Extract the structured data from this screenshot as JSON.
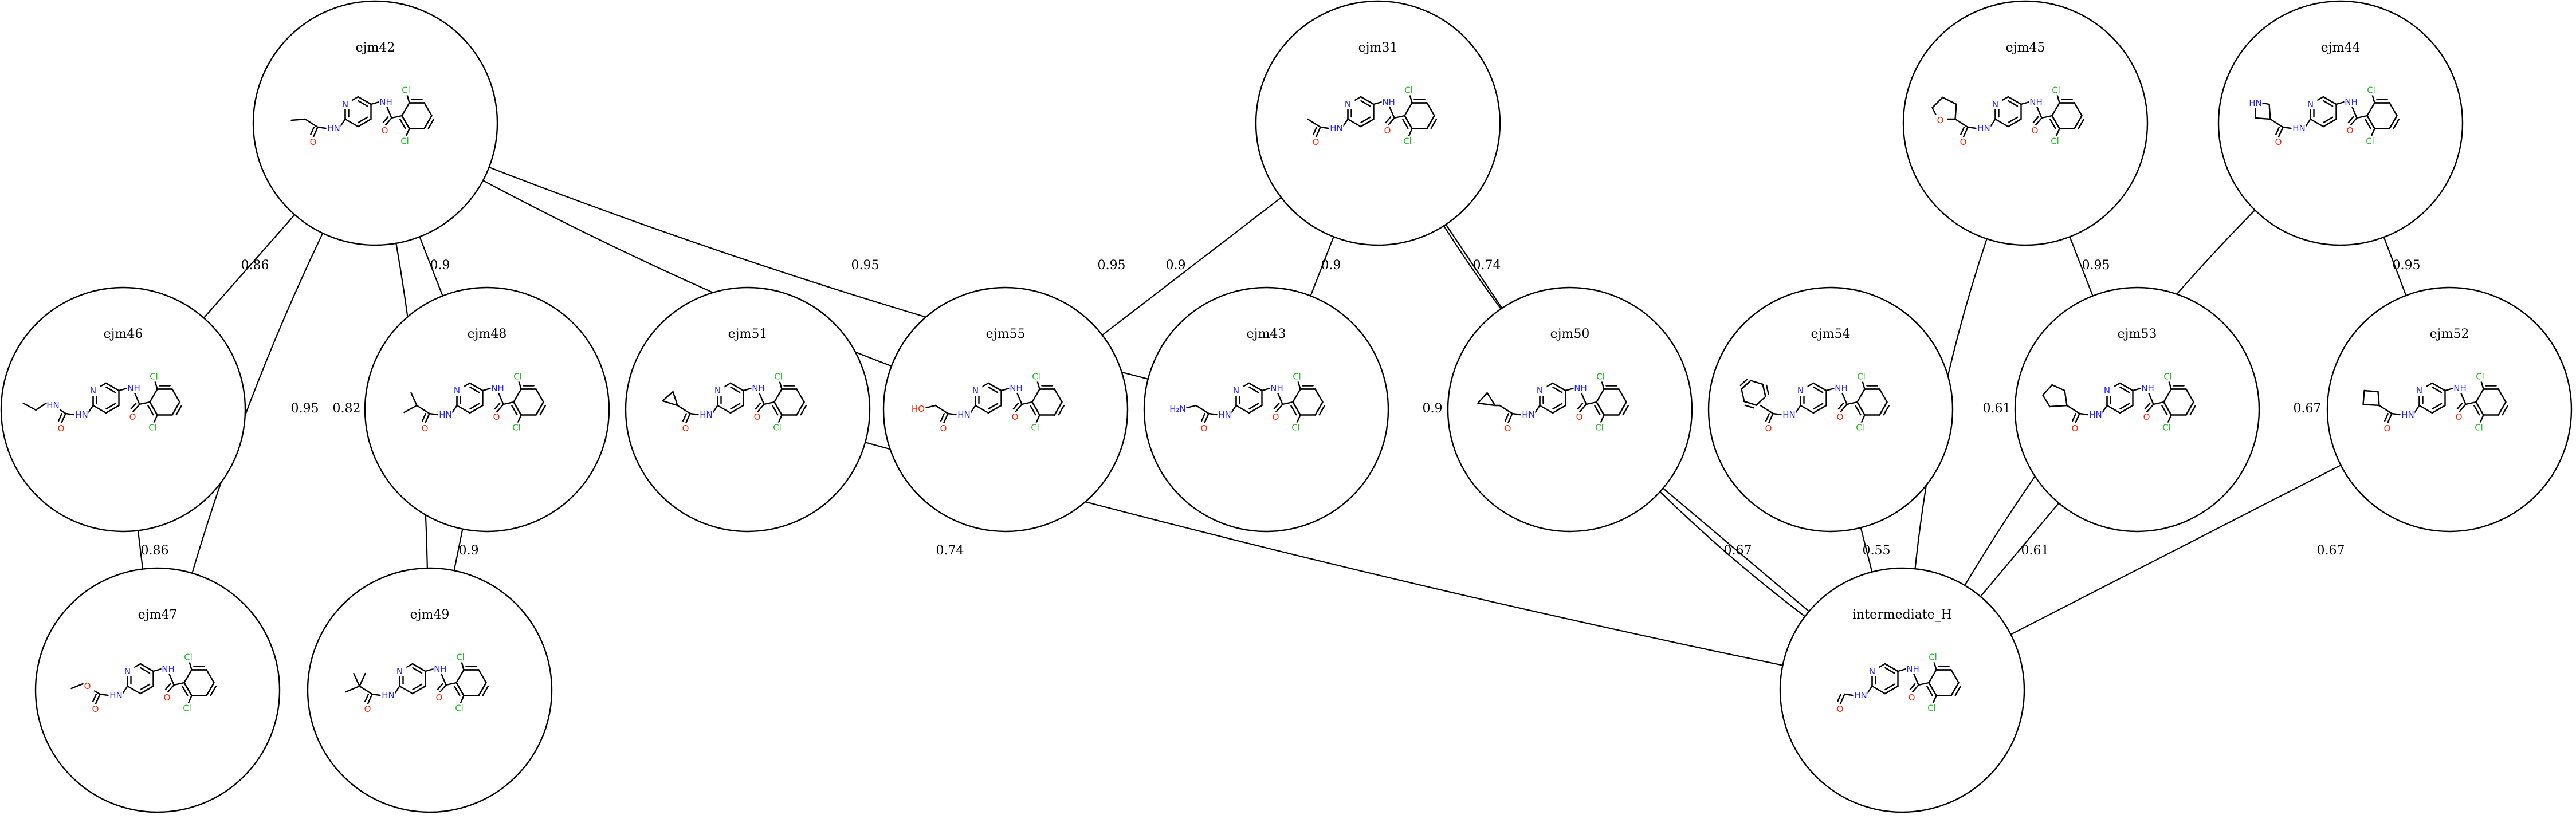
{
  "colors": {
    "nitrogen": "#2222ff",
    "oxygen": "#ff2200",
    "chlorine": "#22bb22",
    "carbon": "#000000"
  },
  "atoms": {
    "N": "N",
    "NH": "NH",
    "HN": "HN",
    "O": "O",
    "Cl": "Cl",
    "HO": "HO",
    "H2N": "H₂N"
  },
  "nodes": [
    {
      "id": "ejm42",
      "label": "ejm42",
      "sub": "ethyl"
    },
    {
      "id": "ejm31",
      "label": "ejm31",
      "sub": "methyl"
    },
    {
      "id": "ejm45",
      "label": "ejm45",
      "sub": "thf"
    },
    {
      "id": "ejm44",
      "label": "ejm44",
      "sub": "azetidine"
    },
    {
      "id": "ejm46",
      "label": "ejm46",
      "sub": "ethylamino"
    },
    {
      "id": "ejm48",
      "label": "ejm48",
      "sub": "isopropyl"
    },
    {
      "id": "ejm51",
      "label": "ejm51",
      "sub": "cyclopropyl"
    },
    {
      "id": "ejm55",
      "label": "ejm55",
      "sub": "hydroxymethyl"
    },
    {
      "id": "ejm43",
      "label": "ejm43",
      "sub": "aminomethyl"
    },
    {
      "id": "ejm50",
      "label": "ejm50",
      "sub": "cyclopropylmethyl"
    },
    {
      "id": "ejm54",
      "label": "ejm54",
      "sub": "phenyl"
    },
    {
      "id": "ejm53",
      "label": "ejm53",
      "sub": "cyclopentyl"
    },
    {
      "id": "ejm52",
      "label": "ejm52",
      "sub": "cyclobutyl"
    },
    {
      "id": "ejm47",
      "label": "ejm47",
      "sub": "methoxy"
    },
    {
      "id": "ejm49",
      "label": "ejm49",
      "sub": "tbutyl"
    },
    {
      "id": "intermediate_H",
      "label": "intermediate_H",
      "sub": "formyl"
    }
  ],
  "edges": [
    {
      "from": "ejm42",
      "to": "ejm46",
      "label": "0.86"
    },
    {
      "from": "ejm42",
      "to": "ejm47",
      "label": "0.95"
    },
    {
      "from": "ejm42",
      "to": "ejm49",
      "label": "0.82"
    },
    {
      "from": "ejm42",
      "to": "ejm48",
      "label": "0.9"
    },
    {
      "from": "ejm42",
      "to": "ejm55",
      "label": "0.95"
    },
    {
      "from": "ejm42",
      "to": "ejm43",
      "label": "0.95"
    },
    {
      "from": "ejm31",
      "to": "ejm55",
      "label": "0.9"
    },
    {
      "from": "ejm31",
      "to": "ejm43",
      "label": "0.9"
    },
    {
      "from": "ejm31",
      "to": "ejm50",
      "label": "0.74"
    },
    {
      "from": "ejm31",
      "to": "intermediate_H",
      "label": "0.9"
    },
    {
      "from": "ejm45",
      "to": "ejm53",
      "label": "0.95"
    },
    {
      "from": "ejm45",
      "to": "intermediate_H",
      "label": "0.61"
    },
    {
      "from": "ejm44",
      "to": "ejm52",
      "label": "0.95"
    },
    {
      "from": "ejm44",
      "to": "intermediate_H",
      "label": "0.67"
    },
    {
      "from": "ejm46",
      "to": "ejm47",
      "label": "0.86"
    },
    {
      "from": "ejm48",
      "to": "ejm49",
      "label": "0.9"
    },
    {
      "from": "ejm51",
      "to": "intermediate_H",
      "label": "0.74"
    },
    {
      "from": "ejm50",
      "to": "intermediate_H",
      "label": "0.67"
    },
    {
      "from": "ejm54",
      "to": "intermediate_H",
      "label": "0.55"
    },
    {
      "from": "ejm53",
      "to": "intermediate_H",
      "label": "0.61"
    },
    {
      "from": "ejm52",
      "to": "intermediate_H",
      "label": "0.67"
    }
  ]
}
